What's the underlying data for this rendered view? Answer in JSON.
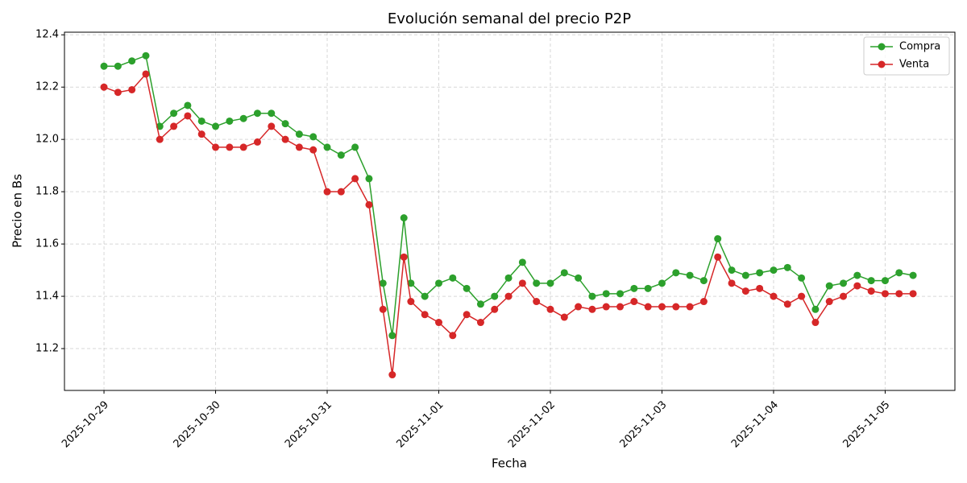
{
  "chart_data": {
    "type": "line",
    "title": "Evolución semanal del precio P2P",
    "xlabel": "Fecha",
    "ylabel": "Precio en Bs",
    "x": [
      "2025-10-29 00:00",
      "2025-10-29 03:00",
      "2025-10-29 06:00",
      "2025-10-29 09:00",
      "2025-10-29 12:00",
      "2025-10-29 15:00",
      "2025-10-29 18:00",
      "2025-10-29 21:00",
      "2025-10-30 00:00",
      "2025-10-30 03:00",
      "2025-10-30 06:00",
      "2025-10-30 09:00",
      "2025-10-30 12:00",
      "2025-10-30 15:00",
      "2025-10-30 18:00",
      "2025-10-30 21:00",
      "2025-10-31 00:00",
      "2025-10-31 03:00",
      "2025-10-31 06:00",
      "2025-10-31 09:00",
      "2025-10-31 12:00",
      "2025-10-31 14:00",
      "2025-10-31 16:30",
      "2025-10-31 18:00",
      "2025-10-31 21:00",
      "2025-11-01 00:00",
      "2025-11-01 03:00",
      "2025-11-01 06:00",
      "2025-11-01 09:00",
      "2025-11-01 12:00",
      "2025-11-01 15:00",
      "2025-11-01 18:00",
      "2025-11-01 21:00",
      "2025-11-02 00:00",
      "2025-11-02 03:00",
      "2025-11-02 06:00",
      "2025-11-02 09:00",
      "2025-11-02 12:00",
      "2025-11-02 15:00",
      "2025-11-02 18:00",
      "2025-11-02 21:00",
      "2025-11-03 00:00",
      "2025-11-03 03:00",
      "2025-11-03 06:00",
      "2025-11-03 09:00",
      "2025-11-03 12:00",
      "2025-11-03 15:00",
      "2025-11-03 18:00",
      "2025-11-03 21:00",
      "2025-11-04 00:00",
      "2025-11-04 03:00",
      "2025-11-04 06:00",
      "2025-11-04 09:00",
      "2025-11-04 12:00",
      "2025-11-04 15:00",
      "2025-11-04 18:00",
      "2025-11-04 21:00",
      "2025-11-05 00:00",
      "2025-11-05 03:00",
      "2025-11-05 06:00"
    ],
    "series": [
      {
        "name": "Compra",
        "color": "#2ca02c",
        "values": [
          12.28,
          12.28,
          12.3,
          12.32,
          12.05,
          12.1,
          12.13,
          12.07,
          12.05,
          12.07,
          12.08,
          12.1,
          12.1,
          12.06,
          12.02,
          12.01,
          11.97,
          11.94,
          11.97,
          11.85,
          11.45,
          11.25,
          11.7,
          11.45,
          11.4,
          11.45,
          11.47,
          11.43,
          11.37,
          11.4,
          11.47,
          11.53,
          11.45,
          11.45,
          11.49,
          11.47,
          11.4,
          11.41,
          11.41,
          11.43,
          11.43,
          11.45,
          11.49,
          11.48,
          11.46,
          11.62,
          11.5,
          11.48,
          11.49,
          11.5,
          11.51,
          11.47,
          11.35,
          11.44,
          11.45,
          11.48,
          11.46,
          11.46,
          11.49,
          11.48
        ]
      },
      {
        "name": "Venta",
        "color": "#d62728",
        "values": [
          12.2,
          12.18,
          12.19,
          12.25,
          12.0,
          12.05,
          12.09,
          12.02,
          11.97,
          11.97,
          11.97,
          11.99,
          12.05,
          12.0,
          11.97,
          11.96,
          11.8,
          11.8,
          11.85,
          11.75,
          11.35,
          11.1,
          11.55,
          11.38,
          11.33,
          11.3,
          11.25,
          11.33,
          11.3,
          11.35,
          11.4,
          11.45,
          11.38,
          11.35,
          11.32,
          11.36,
          11.35,
          11.36,
          11.36,
          11.38,
          11.36,
          11.36,
          11.36,
          11.36,
          11.38,
          11.55,
          11.45,
          11.42,
          11.43,
          11.4,
          11.37,
          11.4,
          11.3,
          11.38,
          11.4,
          11.44,
          11.42,
          11.41,
          11.41,
          11.41
        ]
      }
    ],
    "xlim": [
      "2025-10-28 15:30",
      "2025-11-05 15:00"
    ],
    "xticks": [
      "2025-10-29",
      "2025-10-30",
      "2025-10-31",
      "2025-11-01",
      "2025-11-02",
      "2025-11-03",
      "2025-11-04",
      "2025-11-05"
    ],
    "ylim": [
      11.04,
      12.41
    ],
    "yticks": [
      11.2,
      11.4,
      11.6,
      11.8,
      {
        "value": 12.0,
        "label": "12.0"
      },
      12.2,
      12.4
    ],
    "grid": true,
    "legend": "upper right"
  }
}
